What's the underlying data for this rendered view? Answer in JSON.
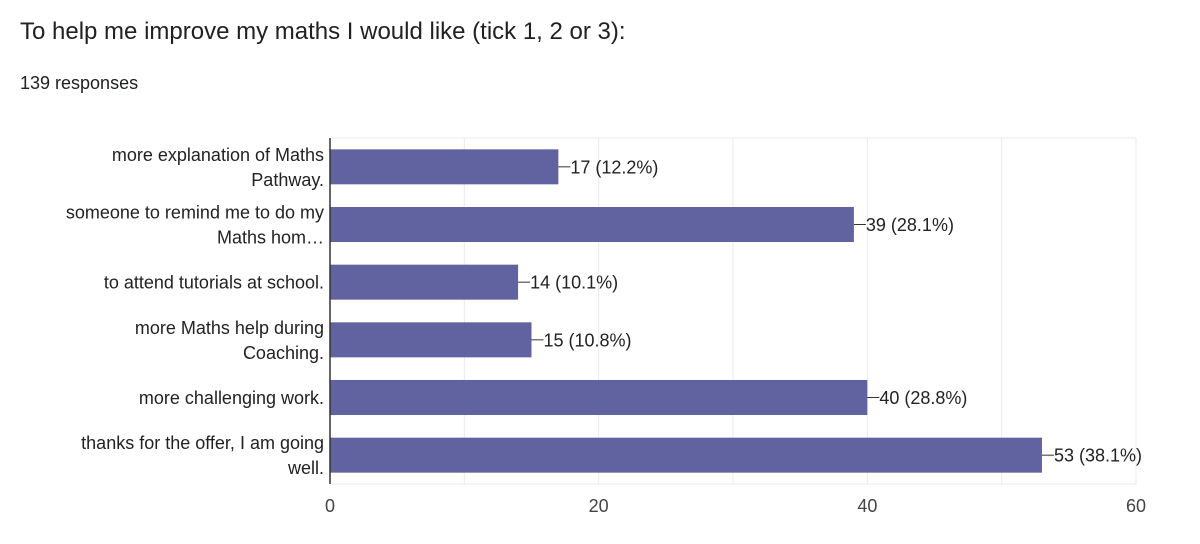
{
  "page": {
    "title": "To help me improve my maths I would like (tick 1, 2 or 3):",
    "responses": "139 responses"
  },
  "colors": {
    "bar": "#6162a0",
    "grid": "#ebebeb",
    "axis": "#333333",
    "text": "#222222"
  },
  "chart_data": {
    "type": "bar",
    "orientation": "horizontal",
    "categories": [
      [
        "more explanation of Maths",
        "Pathway."
      ],
      [
        "someone to remind me to do my",
        "Maths hom…"
      ],
      [
        "to attend tutorials at school."
      ],
      [
        "more Maths help during",
        "Coaching."
      ],
      [
        "more challenging work."
      ],
      [
        "thanks for the offer, I am going",
        "well."
      ]
    ],
    "values": [
      17,
      39,
      14,
      15,
      40,
      53
    ],
    "data_labels": [
      "17 (12.2%)",
      "39 (28.1%)",
      "14 (10.1%)",
      "15 (10.8%)",
      "40 (28.8%)",
      "53 (38.1%)"
    ],
    "xlim": [
      0,
      60
    ],
    "xticks": [
      0,
      20,
      40,
      60
    ],
    "grid": true
  }
}
